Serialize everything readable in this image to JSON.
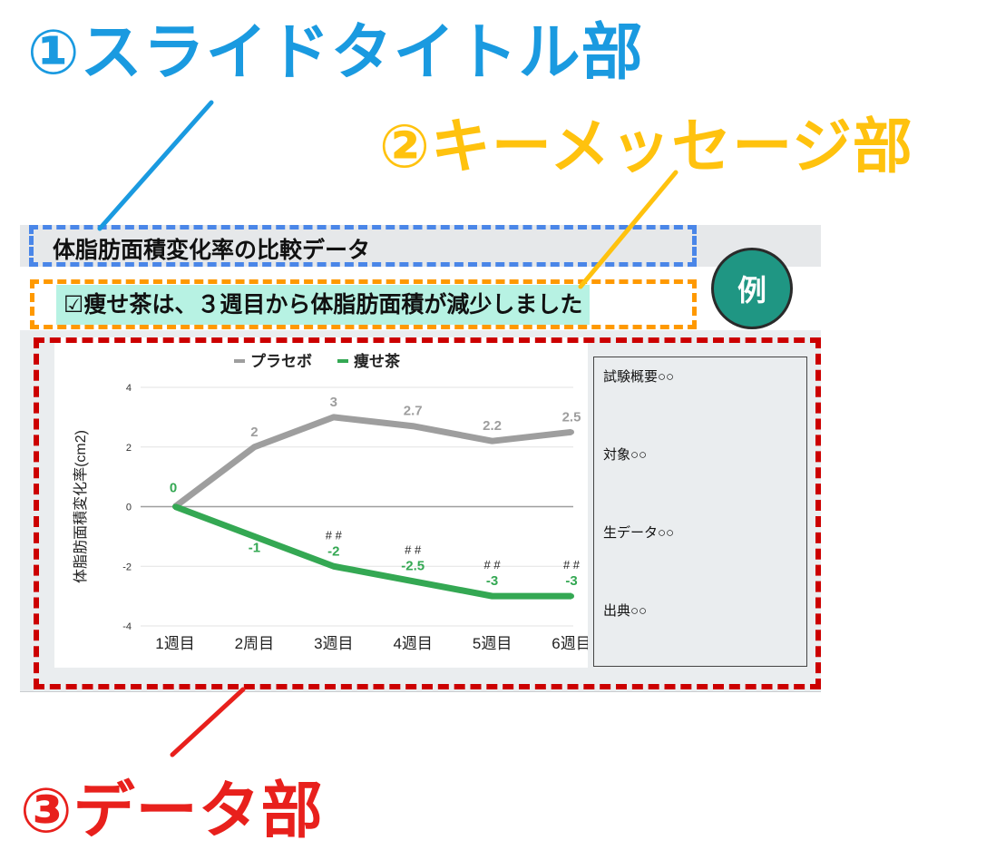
{
  "callouts": {
    "title_section": "①スライドタイトル部",
    "key_message_section": "②キーメッセージ部",
    "data_section": "③データ部"
  },
  "slide": {
    "title": "体脂肪面積変化率の比較データ",
    "key_message": "☑痩せ茶は、３週目から体脂肪面積が減少しました",
    "example_badge": "例",
    "info": [
      "試験概要○○",
      "対象○○",
      "生データ○○",
      "出典○○"
    ]
  },
  "colors": {
    "callout_1": "#1a9ae0",
    "callout_2": "#ffc20e",
    "callout_3": "#e8201c",
    "title_box_border": "#4a86e8",
    "key_box_border": "#ff9900",
    "data_box_border": "#cc0000",
    "key_message_bg": "#b7f2e3",
    "badge_bg": "#1f9683"
  },
  "chart_data": {
    "type": "line",
    "categories": [
      "1週目",
      "2周目",
      "3週目",
      "4週目",
      "5週目",
      "6週目"
    ],
    "ylabel": "体脂肪面積変化率(cm2)",
    "ylim": [
      -4,
      4
    ],
    "yticks": [
      4,
      2,
      0,
      -2,
      -4
    ],
    "legend_position": "top",
    "series": [
      {
        "name": "プラセボ",
        "color": "#9e9e9e",
        "values": [
          0,
          2,
          3,
          2.7,
          2.2,
          2.5
        ],
        "labels": [
          "",
          "2",
          "3",
          "2.7",
          "2.2",
          "2.5"
        ]
      },
      {
        "name": "痩せ茶",
        "color": "#34a853",
        "values": [
          0,
          -1,
          -2,
          -2.5,
          -3,
          -3
        ],
        "labels": [
          "0",
          "-1",
          "-2",
          "-2.5",
          "-3",
          "-3"
        ]
      }
    ],
    "annotations": [
      "",
      "",
      "# #",
      "# #",
      "# #",
      "# #"
    ]
  }
}
